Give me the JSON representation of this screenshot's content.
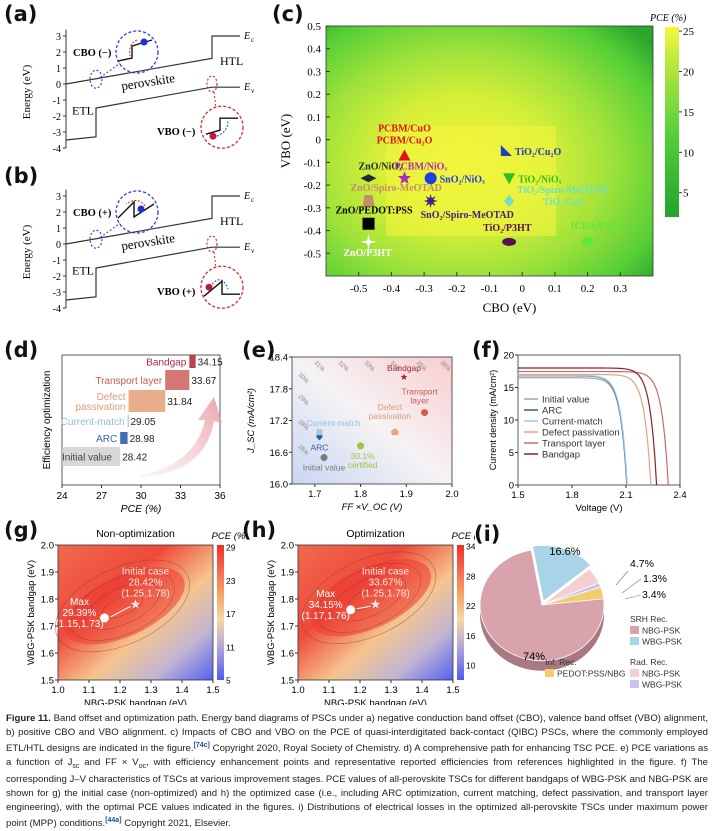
{
  "panels": {
    "a": {
      "label": "(a)",
      "ylabel": "Energy (eV)",
      "yticks": [
        "3",
        "2",
        "1",
        "0",
        "-1",
        "-2",
        "-3",
        "-4"
      ],
      "labels": {
        "cbo": "CBO (−)",
        "vbo": "VBO (−)",
        "etl": "ETL",
        "htl": "HTL",
        "perovskite": "perovskite",
        "ec": "E",
        "ec_sub": "c",
        "ev": "E",
        "ev_sub": "v"
      }
    },
    "b": {
      "label": "(b)",
      "ylabel": "Energy (eV)",
      "yticks": [
        "3",
        "2",
        "1",
        "0",
        "-1",
        "-2",
        "-3",
        "-4"
      ],
      "labels": {
        "cbo": "CBO (+)",
        "vbo": "VBO (+)",
        "etl": "ETL",
        "htl": "HTL",
        "perovskite": "perovskite",
        "ec": "E",
        "ec_sub": "c",
        "ev": "E",
        "ev_sub": "v"
      }
    },
    "c": {
      "label": "(c)",
      "colorbar_title": "PCE (%)",
      "colorbar_ticks": [
        "25",
        "20",
        "15",
        "10",
        "5"
      ]
    },
    "d": {
      "label": "(d)"
    },
    "e": {
      "label": "(e)"
    },
    "f": {
      "label": "(f)"
    },
    "g": {
      "label": "(g)"
    },
    "h": {
      "label": "(h)"
    },
    "i": {
      "label": "(i)"
    }
  },
  "chart_data": [
    {
      "id": "c",
      "type": "heatmap",
      "title": "",
      "xlabel": "CBO (eV)",
      "ylabel": "VBO (eV)",
      "xlim": [
        -0.6,
        0.4
      ],
      "ylim": [
        -0.6,
        0.5
      ],
      "xticks": [
        "-0.5",
        "-0.4",
        "-0.3",
        "-0.2",
        "-0.1",
        "0",
        "0.1",
        "0.2",
        "0.3"
      ],
      "yticks": [
        "0.5",
        "0.4",
        "0.3",
        "0.2",
        "0.1",
        "0",
        "-0.1",
        "-0.2",
        "-0.3",
        "-0.4",
        "-0.5"
      ],
      "colorbar": {
        "label": "PCE (%)",
        "range": [
          2,
          25.5
        ],
        "ticks": [
          25,
          20,
          15,
          10,
          5
        ]
      },
      "points": [
        {
          "label": "PCBM/CuO\nPCBM/Cu2O",
          "label_lines": [
            "PCBM/CuO",
            "PCBM/Cu₂O"
          ],
          "x": -0.36,
          "y": -0.07,
          "marker": "triangle-up",
          "color": "#e0121b"
        },
        {
          "label": "TiO2/Cu2O",
          "label_lines": [
            "TiO₂/Cu₂O"
          ],
          "x": -0.05,
          "y": -0.05,
          "marker": "right-triangle",
          "color": "#1f3fbf"
        },
        {
          "label": "ZnO/NiOx",
          "label_lines": [
            "ZnO/NiOₓ"
          ],
          "x": -0.47,
          "y": -0.17,
          "marker": "diamond-wide",
          "color": "#1d2b3a"
        },
        {
          "label": "PCBM/NiOx",
          "label_lines": [
            "PCBM/NiOₓ"
          ],
          "x": -0.36,
          "y": -0.17,
          "marker": "star",
          "color": "#b02ab8"
        },
        {
          "label": "SnO2/NiOx",
          "label_lines": [
            "SnO₂/NiOₓ"
          ],
          "x": -0.28,
          "y": -0.17,
          "marker": "circle",
          "color": "#1e3ee6"
        },
        {
          "label": "TiO2/NiOx",
          "label_lines": [
            "TiO₂/NiOₓ"
          ],
          "x": -0.04,
          "y": -0.17,
          "marker": "triangle-down",
          "color": "#2fbf1f"
        },
        {
          "label": "ZnO/Spiro-MeOTAD",
          "label_lines": [
            "ZnO/Spiro-MeOTAD"
          ],
          "x": -0.47,
          "y": -0.27,
          "marker": "trapezoid",
          "color": "#c0906a"
        },
        {
          "label": "SnO2/Spiro-MeOTAD",
          "label_lines": [
            "SnO₂/Spiro-MeOTAD"
          ],
          "x": -0.28,
          "y": -0.27,
          "marker": "star8",
          "color": "#4b1a8c"
        },
        {
          "label": "TiO2/Spiro-MeOTAD\nTiO2/CuI",
          "label_lines": [
            "TiO₂/Spiro-MeOTAD",
            "TiO₂/CuI"
          ],
          "x": -0.04,
          "y": -0.27,
          "marker": "diamond",
          "color": "#6fe0c0"
        },
        {
          "label": "ZnO/PEDOT:PSS",
          "label_lines": [
            "ZnO/PEDOT:PSS"
          ],
          "x": -0.47,
          "y": -0.37,
          "marker": "square",
          "color": "#000000"
        },
        {
          "label": "TiO2/P3HT",
          "label_lines": [
            "TiO₂/P3HT"
          ],
          "x": -0.04,
          "y": -0.45,
          "marker": "ellipse",
          "color": "#55124f"
        },
        {
          "label": "ICBA/P3HT",
          "label_lines": [
            "ICBA/P3HT"
          ],
          "x": 0.2,
          "y": -0.45,
          "marker": "hexagon",
          "color": "#5fe83a"
        },
        {
          "label": "ZnO/P3HT",
          "label_lines": [
            "ZnO/P3HT"
          ],
          "x": -0.47,
          "y": -0.45,
          "marker": "star4",
          "color": "#ffffff"
        }
      ]
    },
    {
      "id": "d",
      "type": "bar",
      "title": "",
      "xlabel": "PCE (%)",
      "ylabel": "Efficiency optimization",
      "xlim": [
        24,
        36
      ],
      "xticks": [
        "24",
        "27",
        "30",
        "33",
        "36"
      ],
      "categories": [
        "Initial value",
        "ARC",
        "Current-match",
        "Defect passivation",
        "Transport layer",
        "Bandgap"
      ],
      "label_lines": [
        [
          "Initial value"
        ],
        [
          "ARC"
        ],
        [
          "Current-match"
        ],
        [
          "Defect",
          "passivation"
        ],
        [
          "Transport layer"
        ],
        [
          "Bandgap"
        ]
      ],
      "starts": [
        24,
        28.42,
        28.98,
        29.05,
        31.84,
        33.67
      ],
      "values": [
        28.42,
        28.98,
        29.05,
        31.84,
        33.67,
        34.15
      ],
      "value_labels": [
        "28.42",
        "28.98",
        "29.05",
        "31.84",
        "33.67",
        "34.15"
      ],
      "colors": [
        "#c8c8c8",
        "#3a66b0",
        "#a7cde0",
        "#e9a985",
        "#d2706a",
        "#b23a48"
      ],
      "label_colors": [
        "#444444",
        "#3a66b0",
        "#8fc0dc",
        "#e39a78",
        "#c45b55",
        "#a7303f"
      ]
    },
    {
      "id": "e",
      "type": "scatter",
      "title": "",
      "xlabel": "FF ×V_OC (V)",
      "ylabel": "J_SC (mA/cm²)",
      "xlim": [
        1.65,
        2.0
      ],
      "ylim": [
        16.0,
        18.4
      ],
      "xticks": [
        "1.7",
        "1.8",
        "1.9",
        "2.0"
      ],
      "yticks": [
        "18.4",
        "17.8",
        "17.2",
        "16.6",
        "16.0"
      ],
      "contours": [
        "26%",
        "28%",
        "29%",
        "30%",
        "31%",
        "32%",
        "33%",
        "34%",
        "35%",
        "36%"
      ],
      "contour_values": [
        26,
        28,
        29,
        30,
        31,
        32,
        33,
        34,
        35,
        36
      ],
      "points": [
        {
          "label": "Initial value",
          "x": 1.72,
          "y": 16.5,
          "marker": "circle",
          "color": "#7a7a7a",
          "label_color": "#7a7a7a"
        },
        {
          "label": "ARC",
          "x": 1.71,
          "y": 16.9,
          "marker": "pentagon-down",
          "color": "#2f5da8",
          "label_color": "#2f5da8"
        },
        {
          "label": "Current-match",
          "x": 1.71,
          "y": 16.97,
          "marker": "square",
          "color": "#9ccbe6",
          "label_color": "#8cc3e0"
        },
        {
          "label": "30.1% certified",
          "x": 1.8,
          "y": 16.72,
          "marker": "circle",
          "color": "#9fc43a",
          "label_color": "#9fc43a"
        },
        {
          "label": "Defect passivation",
          "x": 1.875,
          "y": 16.98,
          "marker": "pentagon",
          "color": "#e9a67f",
          "label_color": "#e39a78"
        },
        {
          "label": "Transport layer",
          "x": 1.94,
          "y": 17.35,
          "marker": "circle",
          "color": "#cf5f4a",
          "label_color": "#c45b55"
        },
        {
          "label": "Bandgap",
          "x": 1.895,
          "y": 18.02,
          "marker": "star",
          "color": "#9d2a33",
          "label_color": "#9d2a33"
        }
      ]
    },
    {
      "id": "f",
      "type": "line",
      "title": "",
      "xlabel": "Voltage (V)",
      "ylabel": "Current density (mA/cm²)",
      "xlim": [
        1.5,
        2.4
      ],
      "ylim": [
        0,
        20
      ],
      "xticks": [
        "1.5",
        "1.8",
        "2.1",
        "2.4"
      ],
      "yticks": [
        "0",
        "5",
        "10",
        "15",
        "20"
      ],
      "legend": "bottom-left",
      "series": [
        {
          "name": "Initial value",
          "color": "#a6a6a6",
          "jsc": 16.5,
          "voc": 2.105
        },
        {
          "name": "ARC",
          "color": "#2f5d9a",
          "jsc": 16.8,
          "voc": 2.105
        },
        {
          "name": "Current-match",
          "color": "#9ccbe6",
          "jsc": 16.85,
          "voc": 2.107
        },
        {
          "name": "Defect passivation",
          "color": "#e5a27f",
          "jsc": 17.0,
          "voc": 2.238
        },
        {
          "name": "Transport layer",
          "color": "#cd6a62",
          "jsc": 17.45,
          "voc": 2.335
        },
        {
          "name": "Bandgap",
          "color": "#8c1f2b",
          "jsc": 18.0,
          "voc": 2.27
        }
      ]
    },
    {
      "id": "g",
      "type": "heatmap",
      "title": "Non-optimization",
      "xlabel": "NBG-PSK bandgap (eV)",
      "ylabel": "WBG-PSK bandgap (eV)",
      "xlim": [
        1.0,
        1.5
      ],
      "ylim": [
        1.5,
        2.0
      ],
      "xticks": [
        "1.0",
        "1.1",
        "1.2",
        "1.3",
        "1.4",
        "1.5"
      ],
      "yticks": [
        "2.0",
        "1.9",
        "1.8",
        "1.7",
        "1.6",
        "1.5"
      ],
      "colorbar": {
        "label": "PCE (%)",
        "range": [
          5,
          29.4
        ],
        "ticks": [
          29,
          23,
          17,
          11,
          5
        ]
      },
      "max_point": {
        "label_lines": [
          "Max",
          "29.39%",
          "(1.15,1.73)"
        ],
        "x": 1.15,
        "y": 1.73,
        "pce": 29.39
      },
      "initial_point": {
        "label_lines": [
          "Initial case",
          "28.42%",
          "(1.25,1.78)"
        ],
        "x": 1.25,
        "y": 1.78,
        "pce": 28.42
      }
    },
    {
      "id": "h",
      "type": "heatmap",
      "title": "Optimization",
      "xlabel": "NBG-PSK bandgap (eV)",
      "ylabel": "WBG-PSK bandgap (eV)",
      "xlim": [
        1.0,
        1.5
      ],
      "ylim": [
        1.5,
        2.0
      ],
      "xticks": [
        "1.0",
        "1.1",
        "1.2",
        "1.3",
        "1.4",
        "1.5"
      ],
      "yticks": [
        "2.0",
        "1.9",
        "1.8",
        "1.7",
        "1.6",
        "1.5"
      ],
      "colorbar": {
        "label": "PCE (%)",
        "range": [
          7,
          34.2
        ],
        "ticks": [
          34,
          28,
          22,
          16,
          10
        ]
      },
      "max_point": {
        "label_lines": [
          "Max",
          "34.15%",
          "(1.17,1.76)"
        ],
        "x": 1.17,
        "y": 1.76,
        "pce": 34.15
      },
      "initial_point": {
        "label_lines": [
          "Initial case",
          "33.67%",
          "(1.25,1.78)"
        ],
        "x": 1.25,
        "y": 1.78,
        "pce": 33.67
      }
    },
    {
      "id": "i",
      "type": "pie",
      "title": "",
      "slices": [
        {
          "name": "SRH Rec. NBG-PSK",
          "value": 74,
          "label": "74%",
          "color": "#d9a3ad"
        },
        {
          "name": "SRH Rec. WBG-PSK",
          "value": 16.6,
          "label": "16.6%",
          "color": "#a9d3e6"
        },
        {
          "name": "Rad. Rec. NBG-PSK",
          "value": 4.7,
          "label": "4.7%",
          "color": "#f3cfd3"
        },
        {
          "name": "Rad. Rec. WBG-PSK",
          "value": 1.3,
          "label": "1.3%",
          "color": "#c9c2ec"
        },
        {
          "name": "Inf. Rec. PEDOT:PSS/NBG",
          "value": 3.4,
          "label": "3.4%",
          "color": "#f2cd6e"
        }
      ],
      "legend_groups": [
        {
          "title": "SRH Rec.",
          "items": [
            {
              "label": "NBG-PSK",
              "color": "#d9a3ad"
            },
            {
              "label": "WBG-PSK",
              "color": "#a9d3e6"
            }
          ]
        },
        {
          "title": "Rad. Rec.",
          "items": [
            {
              "label": "NBG-PSK",
              "color": "#f3cfd3"
            },
            {
              "label": "WBG-PSK",
              "color": "#c9c2ec"
            }
          ]
        },
        {
          "title": "Inf. Rec.",
          "items": [
            {
              "label": "PEDOT:PSS/NBG",
              "color": "#f2cd6e"
            }
          ]
        }
      ]
    }
  ],
  "caption": {
    "figure_label": "Figure 11.",
    "part1": " Band offset and optimization path. Energy band diagrams of PSCs under a) negative conduction band offset (CBO), valence band offset (VBO) alignment, b) positive CBO and VBO alignment. c) Impacts of CBO and VBO on the PCE of quasi-interdigitated back-contact (QIBC) PSCs, where the commonly employed ETL/HTL designs are indicated in the figure.",
    "ref1": "[74c]",
    "part2": " Copyright 2020, Royal Society of Chemistry. d) A comprehensive path for enhancing TSC PCE. e) PCE variations as a function of J",
    "jsc_sub": "sc",
    "part3": " and FF × V",
    "voc_sub": "oc",
    "part4": ", with efficiency enhancement points and representative reported efficiencies from references highlighted in the figure. f) The corresponding J–V characteristics of TSCs at various improvement stages. PCE values of all-perovskite TSCs for different bandgaps of WBG-PSK and NBG-PSK are shown for g) the initial case (non-optimized) and h) the optimized case (i.e., including ARC optimization, current matching, defect passivation, and transport layer engineering), with the optimal PCE values indicated in the figures. i) Distributions of electrical losses in the optimized all-perovskite TSCs under maximum power point (MPP) conditions.",
    "ref2": "[44a]",
    "part5": " Copyright 2021, Elsevier."
  }
}
